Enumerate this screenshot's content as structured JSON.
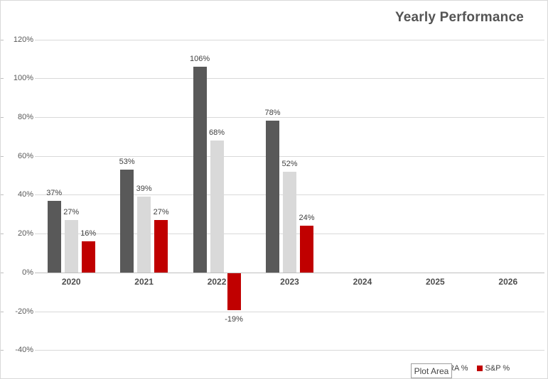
{
  "title": "Yearly Performance",
  "plot_area_tooltip": "Plot Area",
  "legend": {
    "items": [
      {
        "label": "RA %",
        "swatch_color": null
      },
      {
        "label": "S&P %",
        "swatch_color": "#c00000"
      }
    ]
  },
  "colors": {
    "series_dark": "#595959",
    "series_light": "#d9d9d9",
    "series_red": "#c00000",
    "gridline": "#d9d9d9",
    "zero_axis": "#bfbfbf",
    "data_label": "#404040",
    "axis_tick_label": "#595959",
    "category_label": "#4d4d4d",
    "title_color": "#545454",
    "chart_border": "#d9d9d9",
    "tooltip_border": "#9e9e9e"
  },
  "chart_data": {
    "type": "bar",
    "title": "Yearly Performance",
    "categories": [
      "2020",
      "2021",
      "2022",
      "2023",
      "2024",
      "2025",
      "2026"
    ],
    "series": [
      {
        "name": "",
        "color": "#595959",
        "values": [
          37,
          53,
          106,
          78,
          null,
          null,
          null
        ]
      },
      {
        "name": "RA %",
        "color": "#d9d9d9",
        "values": [
          27,
          39,
          68,
          52,
          null,
          null,
          null
        ]
      },
      {
        "name": "S&P %",
        "color": "#c00000",
        "values": [
          16,
          27,
          -19,
          24,
          null,
          null,
          null
        ]
      }
    ],
    "data_labels": true,
    "data_label_format": "{value}%",
    "y_ticks": [
      120,
      100,
      80,
      60,
      40,
      20,
      0,
      -20,
      -40
    ],
    "y_tick_labels": [
      "120%",
      "100%",
      "80%",
      "60%",
      "40%",
      "20%",
      "0%",
      "-20%",
      "-40%"
    ],
    "ylim": [
      -40,
      120
    ],
    "grid": true,
    "legend_position": "bottom-right",
    "legend_visible_labels": [
      "RA %",
      "S&P %"
    ]
  }
}
